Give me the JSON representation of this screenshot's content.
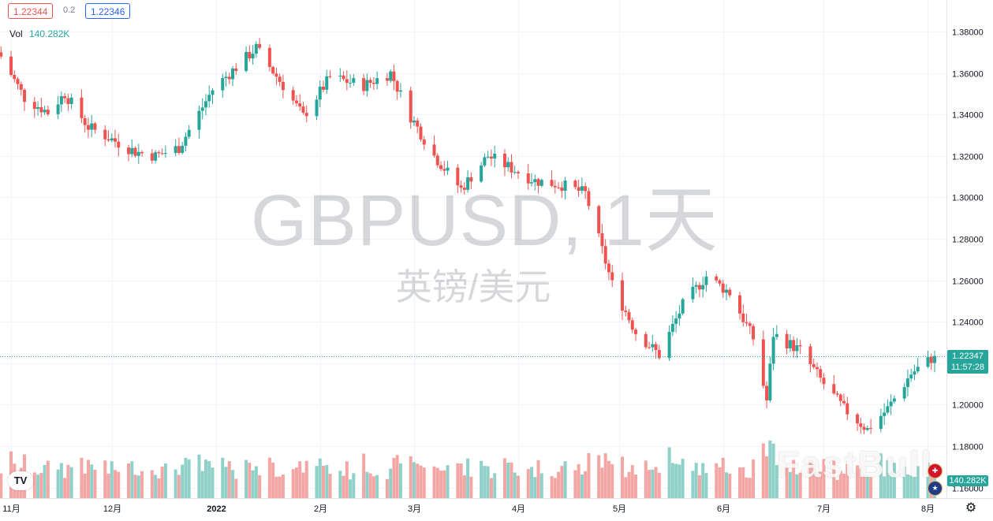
{
  "header": {
    "bid_price": "1.22344",
    "spread": "0.2",
    "ask_price": "1.22346"
  },
  "volume": {
    "label": "Vol",
    "value": "140.282K",
    "tag": "140.282K"
  },
  "watermark": {
    "symbol": "GBPUSD, 1天",
    "name": "英镑/美元"
  },
  "brand_watermark": "FastBull",
  "logo_text": "TV",
  "last_price": {
    "price": "1.22347",
    "countdown": "11:57:28"
  },
  "colors": {
    "up": "#26a69a",
    "down": "#ef5350",
    "volume_up": "#8fd1c8",
    "volume_down": "#f4a6a4",
    "grid": "#f0f3fa",
    "axis_text": "#131722"
  },
  "icons": {
    "settings": "gear-icon",
    "uk_flag": "uk-flag-icon",
    "us_flag": "us-flag-icon"
  },
  "chart_data": {
    "type": "candlestick",
    "symbol": "GBPUSD",
    "interval": "1天",
    "ylim": [
      1.158,
      1.385
    ],
    "y_ticks": [
      1.16,
      1.18,
      1.2,
      1.22,
      1.24,
      1.26,
      1.28,
      1.3,
      1.32,
      1.34,
      1.36,
      1.38
    ],
    "y_tick_labels": [
      "1.16000",
      "1.18000",
      "1.20000",
      "1.22000",
      "1.24000",
      "1.26000",
      "1.28000",
      "1.30000",
      "1.32000",
      "1.34000",
      "1.36000",
      "1.38000"
    ],
    "x_range": [
      "2021-11-01",
      "2022-08-03"
    ],
    "x_ticks": [
      {
        "date": "2021-11-01",
        "label": "11月"
      },
      {
        "date": "2021-12-01",
        "label": "12月"
      },
      {
        "date": "2022-01-01",
        "label": "2022"
      },
      {
        "date": "2022-02-01",
        "label": "2月"
      },
      {
        "date": "2022-03-01",
        "label": "3月"
      },
      {
        "date": "2022-04-01",
        "label": "4月"
      },
      {
        "date": "2022-05-01",
        "label": "5月"
      },
      {
        "date": "2022-06-01",
        "label": "6月"
      },
      {
        "date": "2022-07-01",
        "label": "7月"
      },
      {
        "date": "2022-08-01",
        "label": "8月"
      }
    ],
    "close_path": [
      {
        "date": "2021-10-29",
        "close": 1.368
      },
      {
        "date": "2021-11-05",
        "close": 1.348
      },
      {
        "date": "2021-11-12",
        "close": 1.341
      },
      {
        "date": "2021-11-17",
        "close": 1.35
      },
      {
        "date": "2021-11-24",
        "close": 1.334
      },
      {
        "date": "2021-12-01",
        "close": 1.328
      },
      {
        "date": "2021-12-08",
        "close": 1.322
      },
      {
        "date": "2021-12-14",
        "close": 1.32
      },
      {
        "date": "2021-12-21",
        "close": 1.324
      },
      {
        "date": "2021-12-31",
        "close": 1.352
      },
      {
        "date": "2022-01-13",
        "close": 1.372
      },
      {
        "date": "2022-01-21",
        "close": 1.354
      },
      {
        "date": "2022-01-27",
        "close": 1.339
      },
      {
        "date": "2022-02-04",
        "close": 1.358
      },
      {
        "date": "2022-02-14",
        "close": 1.354
      },
      {
        "date": "2022-02-22",
        "close": 1.36
      },
      {
        "date": "2022-02-28",
        "close": 1.339
      },
      {
        "date": "2022-03-07",
        "close": 1.32
      },
      {
        "date": "2022-03-15",
        "close": 1.304
      },
      {
        "date": "2022-03-23",
        "close": 1.32
      },
      {
        "date": "2022-04-06",
        "close": 1.308
      },
      {
        "date": "2022-04-14",
        "close": 1.306
      },
      {
        "date": "2022-04-21",
        "close": 1.302
      },
      {
        "date": "2022-04-29",
        "close": 1.258
      },
      {
        "date": "2022-05-06",
        "close": 1.235
      },
      {
        "date": "2022-05-13",
        "close": 1.224
      },
      {
        "date": "2022-05-20",
        "close": 1.248
      },
      {
        "date": "2022-05-27",
        "close": 1.262
      },
      {
        "date": "2022-06-03",
        "close": 1.254
      },
      {
        "date": "2022-06-10",
        "close": 1.232
      },
      {
        "date": "2022-06-14",
        "close": 1.202
      },
      {
        "date": "2022-06-16",
        "close": 1.234
      },
      {
        "date": "2022-06-24",
        "close": 1.226
      },
      {
        "date": "2022-07-01",
        "close": 1.21
      },
      {
        "date": "2022-07-07",
        "close": 1.198
      },
      {
        "date": "2022-07-14",
        "close": 1.188
      },
      {
        "date": "2022-07-20",
        "close": 1.198
      },
      {
        "date": "2022-07-27",
        "close": 1.215
      },
      {
        "date": "2022-08-03",
        "close": 1.22347
      }
    ],
    "volume_scale_max": 80000,
    "last_volume": 140282,
    "last_price": 1.22347
  }
}
